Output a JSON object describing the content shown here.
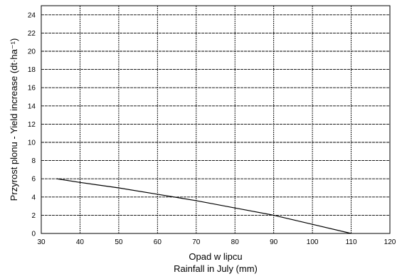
{
  "chart_data": {
    "type": "line",
    "xlabel": [
      "Opad w lipcu",
      "Rainfall in July (mm)"
    ],
    "ylabel": "Przyrost plonu - Yield increase (dt·ha⁻¹)",
    "xlim": [
      30,
      120
    ],
    "ylim": [
      0,
      25
    ],
    "xticks": [
      30,
      40,
      50,
      60,
      70,
      80,
      90,
      100,
      110,
      120
    ],
    "yticks": [
      0,
      2,
      4,
      6,
      8,
      10,
      12,
      14,
      16,
      18,
      20,
      22,
      24
    ],
    "grid": true,
    "series": [
      {
        "x": [
          34,
          40,
          50,
          60,
          70,
          80,
          90,
          100,
          110
        ],
        "y": [
          6.0,
          5.6,
          5.0,
          4.3,
          3.6,
          2.8,
          2.0,
          1.0,
          0.0
        ]
      }
    ]
  }
}
